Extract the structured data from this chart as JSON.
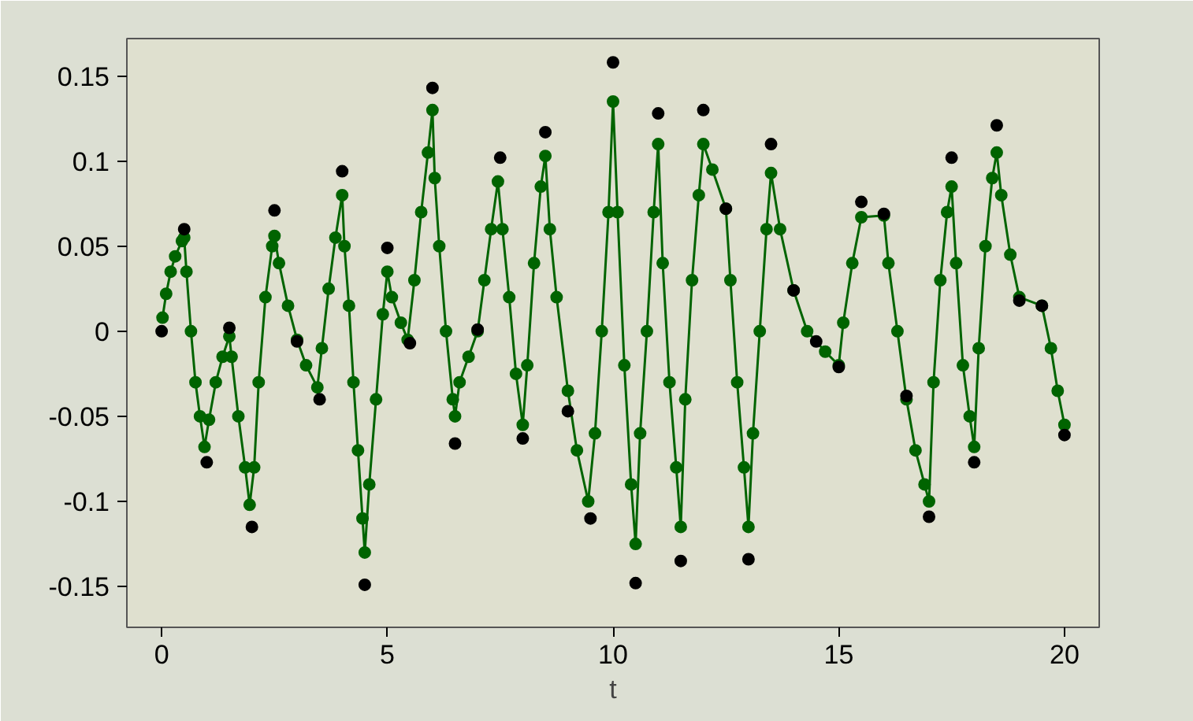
{
  "chart_data": {
    "type": "line",
    "xlabel": "t",
    "marker": "circle",
    "line_style": "solid",
    "grid": false,
    "xlim": [
      -0.77,
      20.77
    ],
    "ylim": [
      -0.174,
      0.172
    ],
    "xticks": [
      0,
      5,
      10,
      15,
      20
    ],
    "yticks": [
      {
        "value": -0.15,
        "label": "-0.15"
      },
      {
        "value": -0.1,
        "label": "-0.1"
      },
      {
        "value": -0.05,
        "label": "-0.05"
      },
      0,
      {
        "value": 0.05,
        "label": "0.05"
      },
      {
        "value": 0.1,
        "label": "0.1"
      },
      {
        "value": 0.15,
        "label": "0.15"
      }
    ],
    "series": [
      {
        "color": "#006400",
        "x": [
          0.02,
          0.1,
          0.2,
          0.3,
          0.45,
          0.5,
          0.55,
          0.65,
          0.75,
          0.85,
          0.95,
          1.05,
          1.2,
          1.35,
          1.5,
          1.55,
          1.7,
          1.85,
          1.95,
          2.05,
          2.15,
          2.3,
          2.45,
          2.5,
          2.6,
          2.8,
          3.0,
          3.2,
          3.45,
          3.55,
          3.7,
          3.85,
          4.0,
          4.05,
          4.15,
          4.25,
          4.35,
          4.45,
          4.5,
          4.6,
          4.75,
          4.9,
          5.0,
          5.1,
          5.3,
          5.45,
          5.6,
          5.75,
          5.9,
          6.0,
          6.05,
          6.15,
          6.3,
          6.45,
          6.5,
          6.6,
          6.8,
          7.0,
          7.15,
          7.3,
          7.45,
          7.55,
          7.7,
          7.85,
          8.0,
          8.1,
          8.25,
          8.4,
          8.5,
          8.6,
          8.75,
          9.0,
          9.2,
          9.45,
          9.6,
          9.75,
          9.9,
          10.0,
          10.1,
          10.25,
          10.4,
          10.5,
          10.6,
          10.75,
          10.9,
          11.0,
          11.1,
          11.25,
          11.4,
          11.5,
          11.6,
          11.75,
          11.9,
          12.0,
          12.2,
          12.5,
          12.6,
          12.75,
          12.9,
          13.0,
          13.1,
          13.25,
          13.4,
          13.5,
          13.7,
          14.0,
          14.3,
          14.7,
          15.0,
          15.1,
          15.3,
          15.5,
          16.0,
          16.1,
          16.3,
          16.5,
          16.7,
          16.9,
          17.0,
          17.1,
          17.25,
          17.4,
          17.5,
          17.6,
          17.75,
          17.9,
          18.0,
          18.1,
          18.25,
          18.4,
          18.5,
          18.6,
          18.8,
          19.0,
          19.5,
          19.7,
          19.85,
          20.0
        ],
        "values": [
          0.008,
          0.022,
          0.035,
          0.044,
          0.053,
          0.055,
          0.035,
          0.0,
          -0.03,
          -0.05,
          -0.068,
          -0.052,
          -0.03,
          -0.015,
          -0.003,
          -0.015,
          -0.05,
          -0.08,
          -0.102,
          -0.08,
          -0.03,
          0.02,
          0.05,
          0.056,
          0.04,
          0.015,
          -0.005,
          -0.02,
          -0.033,
          -0.01,
          0.025,
          0.055,
          0.08,
          0.05,
          0.015,
          -0.03,
          -0.07,
          -0.11,
          -0.13,
          -0.09,
          -0.04,
          0.01,
          0.035,
          0.02,
          0.005,
          -0.005,
          0.03,
          0.07,
          0.105,
          0.13,
          0.09,
          0.05,
          0.0,
          -0.04,
          -0.05,
          -0.03,
          -0.015,
          0.0,
          0.03,
          0.06,
          0.088,
          0.06,
          0.02,
          -0.025,
          -0.055,
          -0.02,
          0.04,
          0.085,
          0.103,
          0.06,
          0.02,
          -0.035,
          -0.07,
          -0.1,
          -0.06,
          0.0,
          0.07,
          0.135,
          0.07,
          -0.02,
          -0.09,
          -0.125,
          -0.06,
          0.0,
          0.07,
          0.11,
          0.04,
          -0.03,
          -0.08,
          -0.115,
          -0.04,
          0.03,
          0.08,
          0.11,
          0.095,
          0.072,
          0.03,
          -0.03,
          -0.08,
          -0.115,
          -0.06,
          0.0,
          0.06,
          0.093,
          0.06,
          0.024,
          0.0,
          -0.012,
          -0.02,
          0.005,
          0.04,
          0.067,
          0.068,
          0.04,
          0.0,
          -0.04,
          -0.07,
          -0.09,
          -0.1,
          -0.03,
          0.03,
          0.07,
          0.085,
          0.04,
          -0.02,
          -0.05,
          -0.068,
          -0.01,
          0.05,
          0.09,
          0.105,
          0.08,
          0.045,
          0.02,
          0.015,
          -0.01,
          -0.035,
          -0.055
        ]
      },
      {
        "type": "scatter",
        "color": "#000000",
        "x": [
          0,
          0.5,
          1,
          1.5,
          2,
          2.5,
          3,
          3.5,
          4,
          4.5,
          5,
          5.5,
          6,
          6.5,
          7,
          7.5,
          8,
          8.5,
          9,
          9.5,
          10,
          10.5,
          11,
          11.5,
          12,
          12.5,
          13,
          13.5,
          14,
          14.5,
          15,
          15.5,
          16,
          16.5,
          17,
          17.5,
          18,
          18.5,
          19,
          19.5,
          20
        ],
        "values": [
          0.0,
          0.06,
          -0.077,
          0.002,
          -0.115,
          0.071,
          -0.006,
          -0.04,
          0.094,
          -0.149,
          0.049,
          -0.007,
          0.143,
          -0.066,
          0.001,
          0.102,
          -0.063,
          0.117,
          -0.047,
          -0.11,
          0.158,
          -0.148,
          0.128,
          -0.135,
          0.13,
          0.072,
          -0.134,
          0.11,
          0.024,
          -0.006,
          -0.021,
          0.076,
          0.069,
          -0.038,
          -0.109,
          0.102,
          -0.077,
          0.121,
          0.018,
          0.015,
          -0.061
        ]
      }
    ]
  }
}
